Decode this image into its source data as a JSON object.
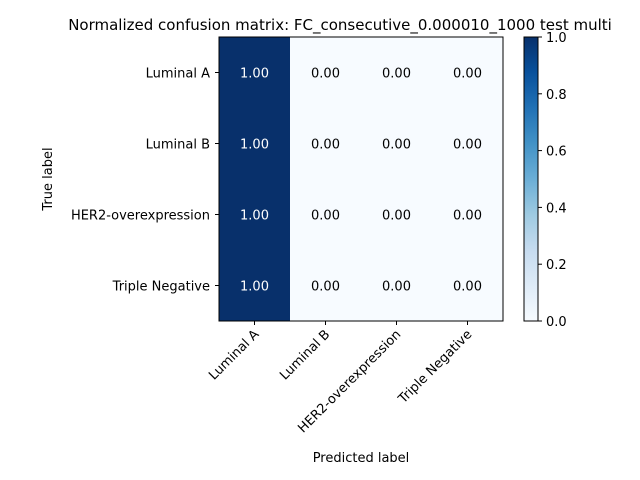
{
  "chart_data": {
    "type": "heatmap",
    "title": "Normalized confusion matrix: FC_consecutive_0.000010_1000 test multi",
    "xlabel": "Predicted label",
    "ylabel": "True label",
    "x_categories": [
      "Luminal A",
      "Luminal B",
      "HER2-overexpression",
      "Triple Negative"
    ],
    "y_categories": [
      "Luminal A",
      "Luminal B",
      "HER2-overexpression",
      "Triple Negative"
    ],
    "values": [
      [
        1.0,
        0.0,
        0.0,
        0.0
      ],
      [
        1.0,
        0.0,
        0.0,
        0.0
      ],
      [
        1.0,
        0.0,
        0.0,
        0.0
      ],
      [
        1.0,
        0.0,
        0.0,
        0.0
      ]
    ],
    "cell_labels": [
      [
        "1.00",
        "0.00",
        "0.00",
        "0.00"
      ],
      [
        "1.00",
        "0.00",
        "0.00",
        "0.00"
      ],
      [
        "1.00",
        "0.00",
        "0.00",
        "0.00"
      ],
      [
        "1.00",
        "0.00",
        "0.00",
        "0.00"
      ]
    ],
    "colorbar": {
      "range": [
        0.0,
        1.0
      ],
      "ticks": [
        "0.0",
        "0.2",
        "0.4",
        "0.6",
        "0.8",
        "1.0"
      ],
      "colormap": "Blues",
      "low_color": "#f7fbff",
      "high_color": "#08306b"
    },
    "grid": false
  }
}
